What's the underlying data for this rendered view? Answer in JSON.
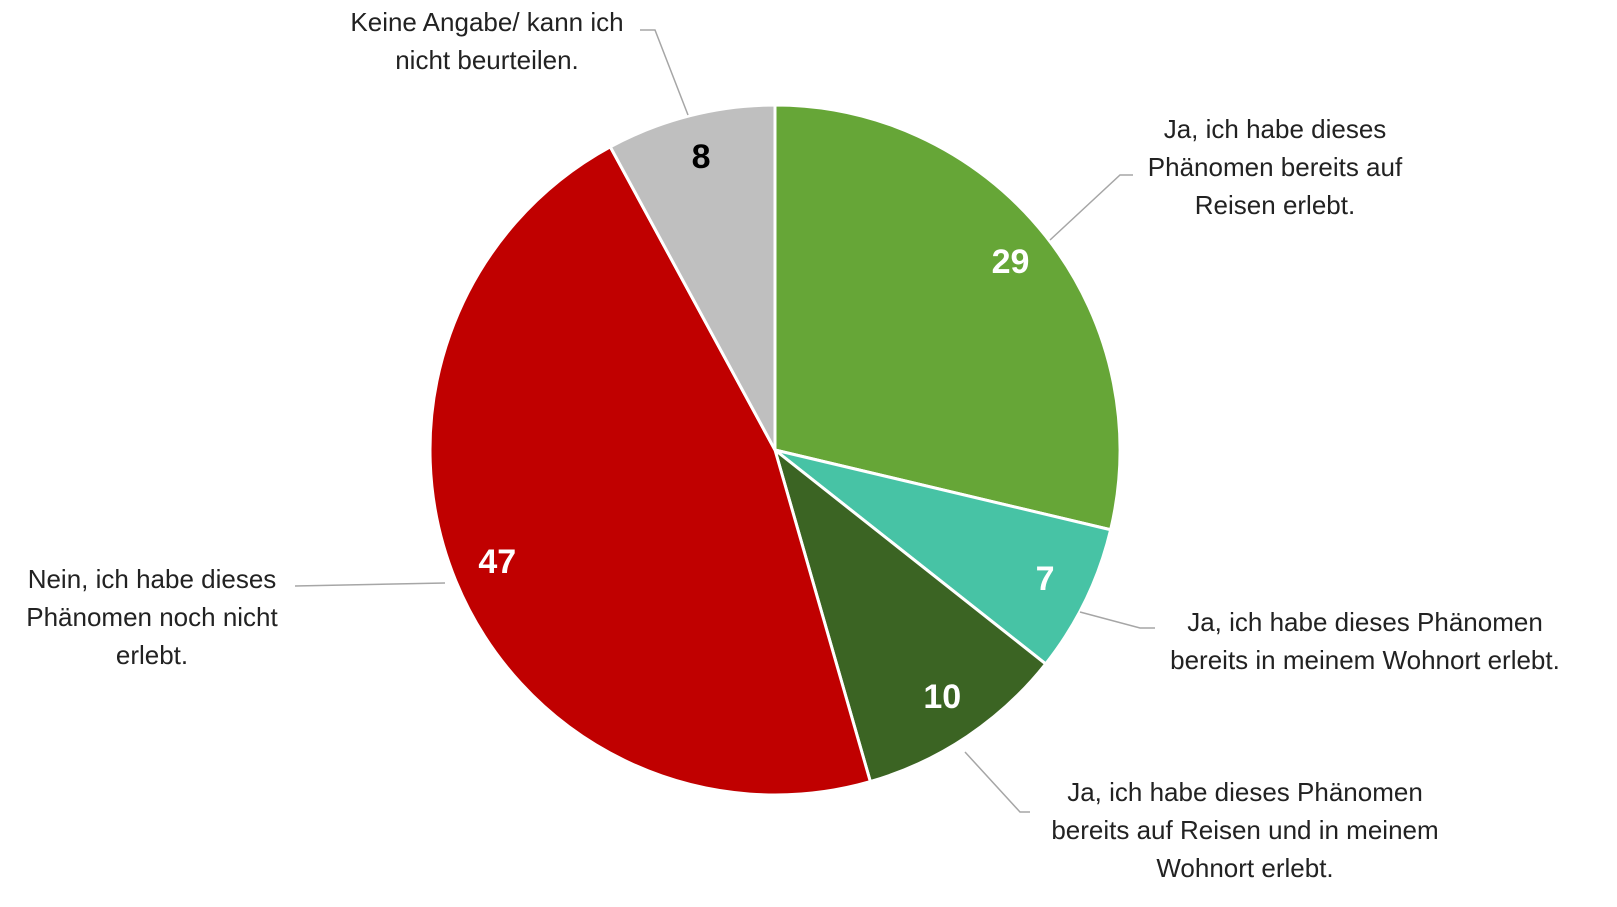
{
  "chart_data": {
    "type": "pie",
    "categories": [
      "Ja, ich habe dieses Phänomen bereits auf Reisen erlebt.",
      "Ja, ich habe dieses Phänomen bereits in meinem Wohnort erlebt.",
      "Ja, ich habe dieses Phänomen bereits auf Reisen und in meinem Wohnort erlebt.",
      "Nein, ich habe dieses Phänomen noch nicht erlebt.",
      "Keine Angabe/ kann ich nicht beurteilen."
    ],
    "values": [
      29,
      7,
      10,
      47,
      8
    ],
    "colors": [
      "#66a637",
      "#47c3a5",
      "#3b6423",
      "#c00000",
      "#bfbfbf"
    ],
    "label_colors": [
      "#ffffff",
      "#ffffff",
      "#ffffff",
      "#ffffff",
      "#000000"
    ]
  }
}
